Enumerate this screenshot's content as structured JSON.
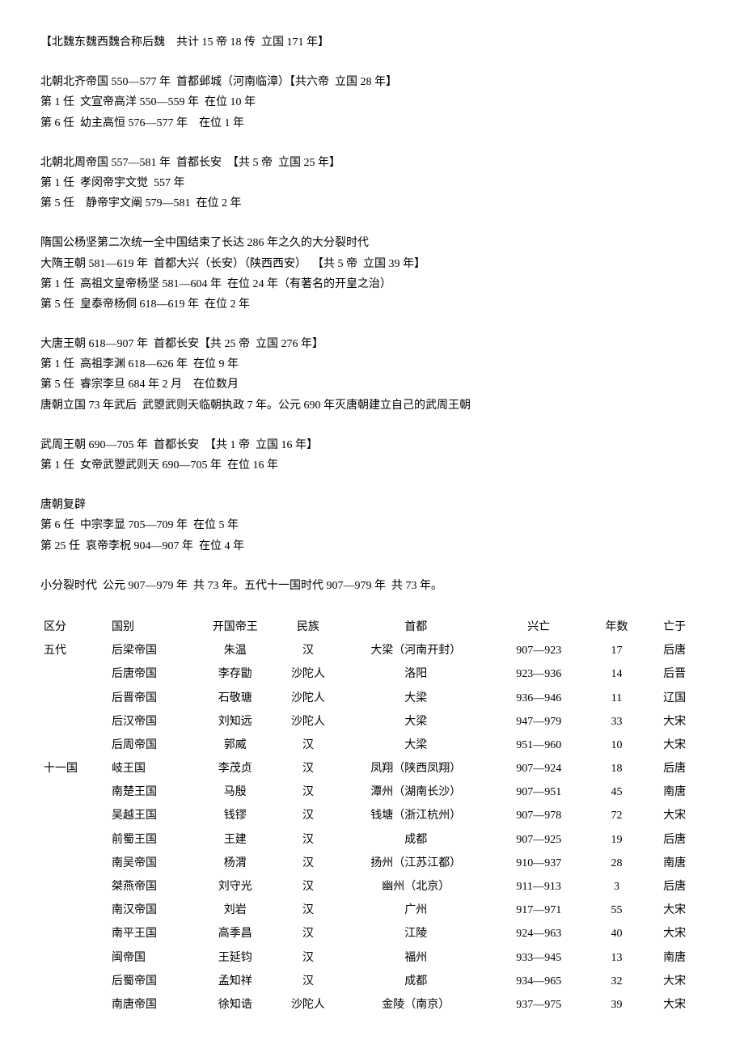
{
  "sections": [
    {
      "lines": [
        "【北魏东魏西魏合称后魏    共计 15 帝 18 传  立国 171 年】"
      ]
    },
    {
      "lines": [
        "北朝北齐帝国 550—577 年  首都邺城（河南临漳）【共六帝  立国 28 年】",
        "第 1 任  文宣帝高洋 550—559 年  在位 10 年",
        "第 6 任  幼主高恒 576—577 年    在位 1 年"
      ]
    },
    {
      "lines": [
        "北朝北周帝国 557—581 年  首都长安  【共 5 帝  立国 25 年】",
        "第 1 任  孝闵帝宇文觉  557 年",
        "第 5 任    静帝宇文阐 579—581  在位 2 年"
      ]
    },
    {
      "lines": [
        "隋国公杨坚第二次统一全中国结束了长达 286 年之久的大分裂时代",
        "大隋王朝 581—619 年  首都大兴（长安）（陕西西安）  【共 5 帝  立国 39 年】",
        "第 1 任  高祖文皇帝杨坚 581—604 年  在位 24 年（有著名的开皇之治）",
        "第 5 任  皇泰帝杨侗 618—619 年  在位 2 年"
      ]
    },
    {
      "lines": [
        "大唐王朝 618—907 年  首都长安【共 25 帝  立国 276 年】",
        "第 1 任  高祖李渊 618—626 年  在位 9 年",
        "第 5 任  睿宗李旦 684 年 2 月    在位数月",
        "唐朝立国 73 年武后  武曌武则天临朝执政 7 年。公元 690 年灭唐朝建立自己的武周王朝"
      ]
    },
    {
      "lines": [
        "武周王朝 690—705 年  首都长安  【共 1 帝  立国 16 年】",
        "第 1 任  女帝武曌武则天 690—705 年  在位 16 年"
      ]
    },
    {
      "lines": [
        "唐朝复辟",
        "第 6 任  中宗李显 705—709 年  在位 5 年",
        "第 25 任  哀帝李柷 904—907 年  在位 4 年"
      ]
    },
    {
      "lines": [
        "小分裂时代  公元 907—979 年  共 73 年。五代十一国时代 907—979 年  共 73 年。"
      ]
    }
  ],
  "table": {
    "headers": [
      "区分",
      "国别",
      "开国帝王",
      "民族",
      "首都",
      "兴亡",
      "年数",
      "亡于"
    ],
    "rows": [
      [
        "五代",
        "后梁帝国",
        "朱温",
        "汉",
        "大梁（河南开封）",
        "907—923",
        "17",
        "后唐"
      ],
      [
        "",
        "后唐帝国",
        "李存勖",
        "沙陀人",
        "洛阳",
        "923—936",
        "14",
        "后晋"
      ],
      [
        "",
        "后晋帝国",
        "石敬瑭",
        "沙陀人",
        "大梁",
        "936—946",
        "11",
        "辽国"
      ],
      [
        "",
        "后汉帝国",
        "刘知远",
        "沙陀人",
        "大梁",
        "947—979",
        "33",
        "大宋"
      ],
      [
        "",
        "后周帝国",
        "郭威",
        "汉",
        "大梁",
        "951—960",
        "10",
        "大宋"
      ],
      [
        "十一国",
        "岐王国",
        "李茂贞",
        "汉",
        "凤翔（陕西凤翔）",
        "907—924",
        "18",
        "后唐"
      ],
      [
        "",
        "南楚王国",
        "马殷",
        "汉",
        "潭州（湖南长沙）",
        "907—951",
        "45",
        "南唐"
      ],
      [
        "",
        "吴越王国",
        "钱镠",
        "汉",
        "钱塘（浙江杭州）",
        "907—978",
        "72",
        "大宋"
      ],
      [
        "",
        "前蜀王国",
        "王建",
        "汉",
        "成都",
        "907—925",
        "19",
        "后唐"
      ],
      [
        "",
        "南吴帝国",
        "杨渭",
        "汉",
        "扬州（江苏江都）",
        "910—937",
        "28",
        "南唐"
      ],
      [
        "",
        "桀燕帝国",
        "刘守光",
        "汉",
        "幽州（北京）",
        "911—913",
        "3",
        "后唐"
      ],
      [
        "",
        "南汉帝国",
        "刘岩",
        "汉",
        "广州",
        "917—971",
        "55",
        "大宋"
      ],
      [
        "",
        "南平王国",
        "高季昌",
        "汉",
        "江陵",
        "924—963",
        "40",
        "大宋"
      ],
      [
        "",
        "闽帝国",
        "王延钧",
        "汉",
        "福州",
        "933—945",
        "13",
        "南唐"
      ],
      [
        "",
        "后蜀帝国",
        "孟知祥",
        "汉",
        "成都",
        "934—965",
        "32",
        "大宋"
      ],
      [
        "",
        "南唐帝国",
        "徐知诰",
        "沙陀人",
        "金陵（南京）",
        "937—975",
        "39",
        "大宋"
      ]
    ]
  }
}
